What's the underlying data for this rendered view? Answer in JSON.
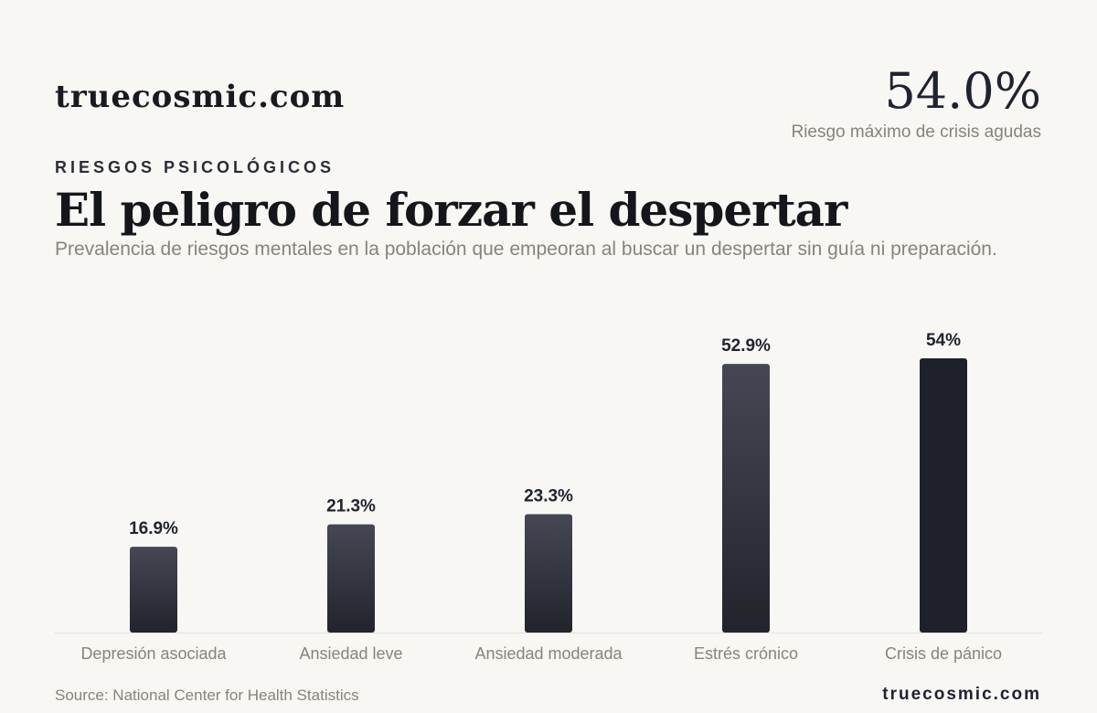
{
  "header": {
    "brand": "truecosmic.com",
    "kpi_value": "54.0%",
    "kpi_label": "Riesgo máximo de crisis agudas"
  },
  "eyebrow": "RIESGOS PSICOLÓGICOS",
  "title": "El peligro de forzar el despertar",
  "subtitle": "Prevalencia de riesgos mentales en la población que empeoran al buscar un despertar sin guía ni preparación.",
  "footer": {
    "source": "Source: National Center for Health Statistics",
    "brand": "truecosmic.com"
  },
  "colors": {
    "bar_top": "#454754",
    "bar_bottom": "#22242c",
    "bar_highlight": "#1e212b",
    "baseline": "#e2e0dc",
    "value_label": "#1f2230",
    "category_label": "#8a827b"
  },
  "chart_data": {
    "type": "bar",
    "categories": [
      "Depresión asociada",
      "Ansiedad leve",
      "Ansiedad moderada",
      "Estrés crónico",
      "Crisis de pánico"
    ],
    "values": [
      16.9,
      21.3,
      23.3,
      52.9,
      54
    ],
    "value_labels": [
      "16.9%",
      "21.3%",
      "23.3%",
      "52.9%",
      "54%"
    ],
    "highlight_index": 4,
    "ylim": [
      0,
      54
    ],
    "grid": false,
    "legend": "none"
  }
}
